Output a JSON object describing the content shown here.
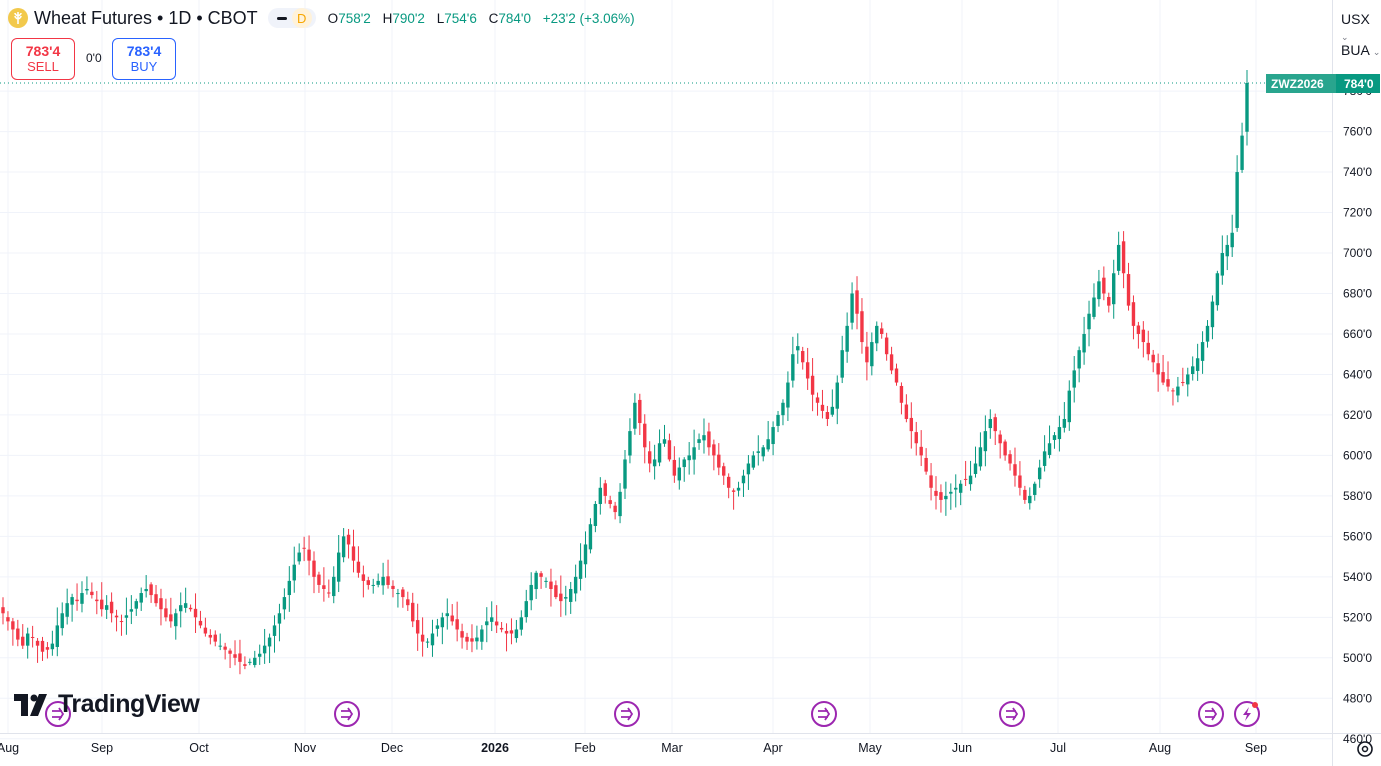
{
  "header": {
    "symbol_title": "Wheat Futures • 1D • CBOT",
    "badge": "D",
    "ohlc": {
      "o_label": "O",
      "o": "758'2",
      "h_label": "H",
      "h": "790'2",
      "l_label": "L",
      "l": "754'6",
      "c_label": "C",
      "c": "784'0",
      "change": "+23'2 (+3.06%)"
    }
  },
  "trade": {
    "sell_price": "783'4",
    "sell_label": "SELL",
    "spread": "0'0",
    "buy_price": "783'4",
    "buy_label": "BUY"
  },
  "right_panel": {
    "currency": "USX",
    "unit": "BUA",
    "symbol_tag": "ZWZ2026",
    "last_price": "784'0"
  },
  "brand": {
    "logo_text": "TradingView"
  },
  "colors": {
    "up": "#089981",
    "down": "#f23645",
    "grid": "#f0f3fa",
    "price_tag": "#089981",
    "event_icon": "#9c27b0"
  },
  "icons": {
    "symbol": "wheat-icon",
    "events": "dividend-event-icon",
    "flash": "lightning-icon",
    "settings": "gear-icon"
  },
  "chart_data": {
    "type": "candlestick",
    "y_axis": {
      "range": [
        455,
        797
      ],
      "ticks": [
        460,
        480,
        500,
        520,
        540,
        560,
        580,
        600,
        620,
        640,
        660,
        680,
        700,
        720,
        740,
        760,
        780
      ],
      "tick_labels": [
        "460'0",
        "480'0",
        "500'0",
        "520'0",
        "540'0",
        "560'0",
        "580'0",
        "600'0",
        "620'0",
        "640'0",
        "660'0",
        "680'0",
        "700'0",
        "720'0",
        "740'0",
        "760'0",
        "780'0"
      ]
    },
    "x_axis": {
      "labels": [
        "Aug",
        "Sep",
        "Oct",
        "Nov",
        "Dec",
        "2026",
        "Feb",
        "Mar",
        "Apr",
        "May",
        "Jun",
        "Jul",
        "Aug",
        "Sep"
      ]
    },
    "close_series": [
      522,
      518,
      514,
      509,
      506,
      512,
      510,
      506,
      503,
      504,
      507,
      516,
      522,
      527,
      530,
      528,
      532,
      534,
      531,
      528,
      524,
      526,
      522,
      520,
      518,
      521,
      524,
      528,
      532,
      534,
      531,
      527,
      524,
      520,
      518,
      522,
      526,
      527,
      524,
      520,
      516,
      512,
      510,
      508,
      506,
      504,
      502,
      500,
      498,
      496,
      498,
      500,
      502,
      506,
      510,
      516,
      522,
      530,
      538,
      546,
      552,
      554,
      548,
      540,
      536,
      534,
      532,
      540,
      552,
      560,
      556,
      548,
      542,
      538,
      536,
      536,
      538,
      540,
      536,
      534,
      532,
      530,
      526,
      518,
      512,
      508,
      508,
      512,
      516,
      520,
      522,
      518,
      514,
      510,
      508,
      508,
      510,
      514,
      518,
      520,
      516,
      514,
      512,
      512,
      514,
      520,
      528,
      536,
      542,
      540,
      538,
      534,
      530,
      528,
      530,
      534,
      540,
      548,
      556,
      566,
      576,
      584,
      580,
      576,
      572,
      582,
      598,
      612,
      626,
      616,
      604,
      596,
      598,
      606,
      608,
      598,
      590,
      594,
      598,
      600,
      604,
      608,
      610,
      604,
      600,
      594,
      590,
      584,
      582,
      584,
      590,
      596,
      600,
      602,
      604,
      608,
      614,
      620,
      626,
      636,
      650,
      654,
      646,
      638,
      630,
      626,
      622,
      618,
      624,
      636,
      652,
      664,
      680,
      670,
      656,
      646,
      656,
      664,
      660,
      650,
      642,
      636,
      626,
      618,
      612,
      606,
      600,
      592,
      584,
      580,
      578,
      580,
      582,
      584,
      586,
      588,
      590,
      596,
      604,
      612,
      618,
      612,
      606,
      600,
      596,
      590,
      584,
      578,
      580,
      586,
      594,
      602,
      606,
      610,
      614,
      618,
      632,
      642,
      652,
      660,
      670,
      678,
      686,
      680,
      674,
      690,
      704,
      690,
      674,
      664,
      660,
      656,
      650,
      646,
      640,
      636,
      634,
      632,
      634,
      636,
      640,
      644,
      648,
      656,
      664,
      676,
      690,
      700,
      704,
      710,
      740,
      758,
      784
    ],
    "markers": {
      "event_icons": 6,
      "flash_icons": 1
    }
  }
}
